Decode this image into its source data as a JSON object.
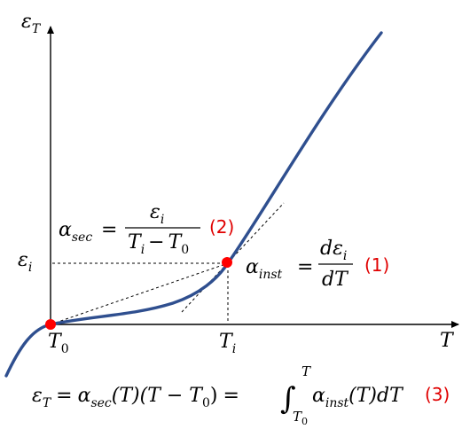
{
  "colors": {
    "curve": "#2f4f8f",
    "marker": "#ff0000",
    "axis": "#000000",
    "guide": "#000000",
    "equation_number": "#e00000"
  },
  "axes": {
    "y_label": {
      "base": "ε",
      "sub": "T"
    },
    "x_label": "T",
    "x_ticks": [
      {
        "base": "T",
        "sub": "0"
      },
      {
        "base": "T",
        "sub": "i"
      }
    ],
    "y_ticks": [
      {
        "base": "ε",
        "sub": "i"
      }
    ]
  },
  "equations": {
    "secant": {
      "lhs_base": "α",
      "lhs_sub": "sec",
      "equals": "=",
      "num_base": "ε",
      "num_sub": "i",
      "den_a_base": "T",
      "den_a_sub": "i",
      "den_minus": "−",
      "den_b_base": "T",
      "den_b_sub": "0",
      "number": "(2)"
    },
    "instantaneous": {
      "lhs_base": "α",
      "lhs_sub": "inst",
      "equals": "=",
      "num": "dε",
      "num_sub": "i",
      "den": "dT",
      "number": "(1)"
    },
    "relation": {
      "lhs_base": "ε",
      "lhs_sub": "T",
      "eq1": "=",
      "alpha1_base": "α",
      "alpha1_sub": "sec",
      "arg1": "(T)(T − T",
      "arg1_sub": "0",
      "arg1_close": ")",
      "eq2": "=",
      "integral": "∫",
      "upper_limit": "T",
      "lower_limit_base": "T",
      "lower_limit_sub": "0",
      "alpha2_base": "α",
      "alpha2_sub": "inst",
      "arg2": "(T)dT",
      "number": "(3)"
    }
  }
}
